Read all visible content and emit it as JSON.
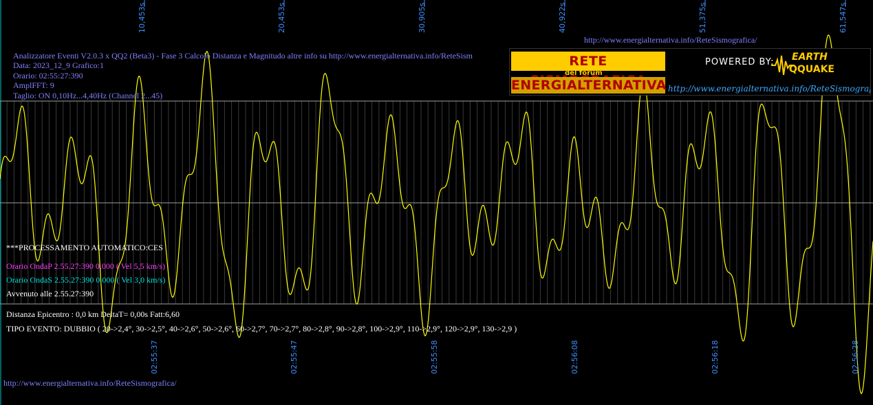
{
  "header": {
    "line1": "Analizzatore Eventi V2.0.3 x QQ2 (Beta3) - Fase 3 Calcolo Distanza e Magnitudo altre info su http://www.energialternativa.info/ReteSism",
    "line2": "Data: 2023_12_9 Grafico:1",
    "line3": "Orario: 02:55:27:390",
    "line4": "AmplFFT: 9",
    "line5": "Taglio: ON 0,10Hz...4,40Hz      (Channel 2...45)"
  },
  "top_url": "http://www.energialternativa.info/ReteSismografica/",
  "bottom_url": "http://www.energialternativa.info/ReteSismografica/",
  "logo": {
    "rete": "RETE SISMOGRAFICA",
    "forum": "del forum",
    "energ": "ENERGIALTERNATIVA",
    "powered": "POWERED BY:",
    "earth": "EARTH",
    "qquake": "QQUAKE",
    "url": "http://www.energialternativa.info/ReteSismografica"
  },
  "processing": {
    "title": "***PROCESSAMENTO AUTOMATICO:CES",
    "onda_p": "Orario OndaP 2.55.27:390  0,000 ( Vel 5,5 km/s)",
    "onda_s": "Orario OndaS 2.55.27:390  0,000 ( Vel 3,0 km/s)",
    "avvenuto": "Avvenuto alle 2.55.27:390",
    "distanza": "Distanza Epicentro : 0,0 km DeltaT= 0,00s  Fatt:6,60",
    "tipo": "TIPO EVENTO: DUBBIO ( 20->2,4°, 30->2,5°, 40->2,6°, 50->2,6°, 60->2,7°, 70->2,7°, 80->2,8°, 90->2,8°, 100->2,9°, 110->2,9°, 120->2,9°, 130->2,9 )"
  },
  "top_time_labels": [
    "10,453s",
    "20,453s",
    "30,905s",
    "40,922s",
    "51,375s",
    "61,547s"
  ],
  "bottom_time_labels": [
    "02:55:37",
    "02:55:47",
    "02:55:58",
    "02:56:08",
    "02:56:18",
    "02:56:28"
  ],
  "colors": {
    "background": "#000000",
    "trace": "#ffff00",
    "grid": "#808080",
    "header_text": "#8080ff",
    "onda_p": "#ff40ff",
    "onda_s": "#00e0e0",
    "white_text": "#ffffff",
    "time_label": "#3f8fff",
    "left_axis": "#00c0c0"
  },
  "icons": {
    "logo_wave": "seismograph-wave-icon"
  }
}
